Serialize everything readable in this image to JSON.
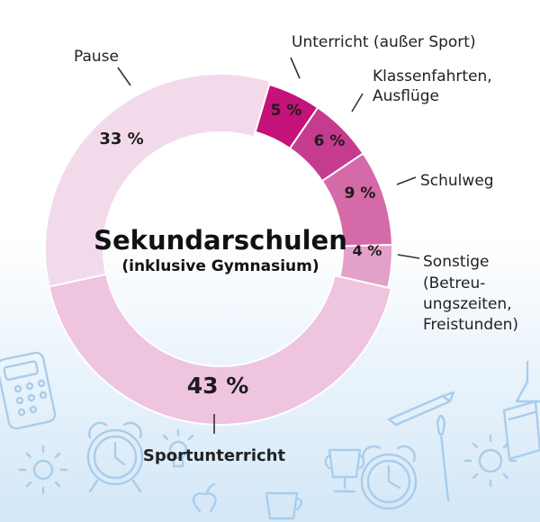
{
  "chart_data": {
    "type": "pie",
    "title": "Sekundarschulen",
    "subtitle": "(inklusive Gymnasium)",
    "slices": [
      {
        "label": "Unterricht (außer Sport)",
        "value": 5,
        "value_label": "5 %",
        "color": "#c4127a"
      },
      {
        "label": "Klassenfahrten, Ausflüge",
        "value": 6,
        "value_label": "6 %",
        "color": "#c53c8e"
      },
      {
        "label": "Schulweg",
        "value": 9,
        "value_label": "9 %",
        "color": "#d46aa7"
      },
      {
        "label": "Sonstige (Betreuungszeiten, Freistunden)",
        "value": 4,
        "value_label": "4 %",
        "color": "#e3a0c9"
      },
      {
        "label": "Sportunterricht",
        "value": 43,
        "value_label": "43 %",
        "color": "#efc4df"
      },
      {
        "label": "Pause",
        "value": 33,
        "value_label": "33 %",
        "color": "#f3daeb"
      }
    ]
  }
}
